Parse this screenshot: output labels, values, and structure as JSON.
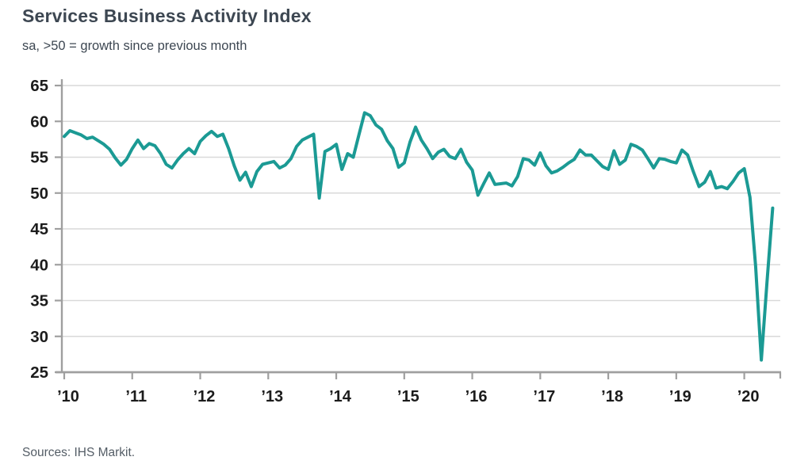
{
  "header": {
    "title": "Services Business Activity Index",
    "subtitle": "sa, >50 = growth since previous month"
  },
  "footer": {
    "source": "Sources: IHS Markit."
  },
  "colors": {
    "line": "#1b9a94",
    "grid": "#d9d9d9",
    "axis": "#9f9f9f",
    "tick_text": "#1c1c1c"
  },
  "chart_data": {
    "type": "line",
    "title": "Services Business Activity Index",
    "subtitle": "sa, >50 = growth since previous month",
    "x_start": "2010-01",
    "x_end": "2020-06",
    "x_frequency": "monthly",
    "x_tick_labels": [
      "’10",
      "’11",
      "’12",
      "’13",
      "’14",
      "’15",
      "’16",
      "’17",
      "’18",
      "’19",
      "’20"
    ],
    "ylim": [
      25,
      65
    ],
    "y_ticks": [
      25,
      30,
      35,
      40,
      45,
      50,
      55,
      60,
      65
    ],
    "grid": "horizontal",
    "legend": "none",
    "line_color": "#1b9a94",
    "series": [
      {
        "name": "Services Business Activity Index (sa)",
        "values": [
          57.9,
          58.7,
          58.4,
          58.1,
          57.6,
          57.8,
          57.3,
          56.8,
          56.1,
          54.9,
          53.9,
          54.7,
          56.2,
          57.4,
          56.2,
          56.9,
          56.6,
          55.5,
          54.0,
          53.5,
          54.6,
          55.5,
          56.2,
          55.5,
          57.2,
          58.0,
          58.6,
          57.9,
          58.2,
          56.2,
          53.8,
          51.8,
          52.9,
          50.9,
          53.0,
          54.0,
          54.2,
          54.4,
          53.5,
          53.9,
          54.8,
          56.5,
          57.4,
          57.8,
          58.2,
          49.3,
          55.8,
          56.2,
          56.8,
          53.3,
          55.5,
          55.0,
          58.1,
          61.2,
          60.8,
          59.5,
          58.9,
          57.3,
          56.2,
          53.6,
          54.2,
          57.1,
          59.2,
          57.4,
          56.2,
          54.8,
          55.7,
          56.1,
          55.1,
          54.8,
          56.1,
          54.3,
          53.2,
          49.7,
          51.3,
          52.8,
          51.2,
          51.3,
          51.4,
          51.0,
          52.3,
          54.8,
          54.6,
          53.9,
          55.6,
          53.8,
          52.8,
          53.1,
          53.6,
          54.2,
          54.7,
          56.0,
          55.3,
          55.3,
          54.5,
          53.7,
          53.3,
          55.9,
          54.0,
          54.6,
          56.8,
          56.5,
          56.0,
          54.8,
          53.5,
          54.8,
          54.7,
          54.4,
          54.2,
          56.0,
          55.3,
          53.0,
          50.9,
          51.5,
          53.0,
          50.7,
          50.9,
          50.6,
          51.6,
          52.8,
          53.4,
          49.4,
          39.8,
          26.7,
          37.5,
          47.9
        ]
      }
    ]
  }
}
